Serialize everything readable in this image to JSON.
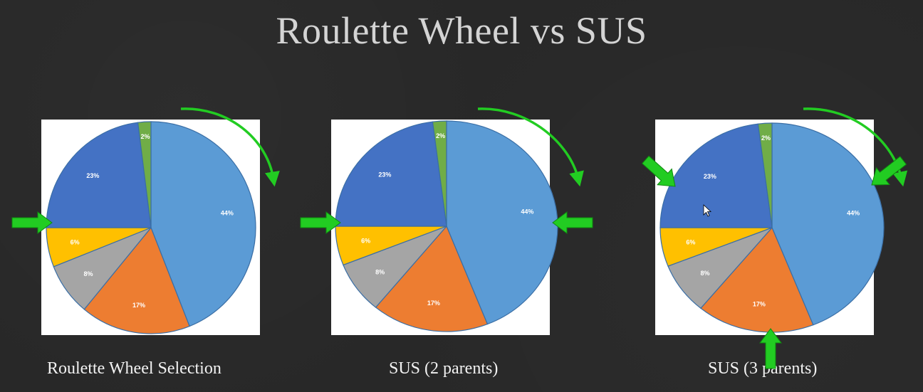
{
  "title": "Roulette Wheel vs SUS",
  "colors": {
    "background": "#282828",
    "arrow": "#22cc22",
    "slice_44": "#5b9bd5",
    "slice_17": "#ed7d31",
    "slice_8": "#a5a5a5",
    "slice_6": "#ffc000",
    "slice_23": "#4472c4",
    "slice_2": "#70ad47"
  },
  "slices": [
    {
      "label": "44%",
      "value": 44,
      "color_key": "slice_44"
    },
    {
      "label": "17%",
      "value": 17,
      "color_key": "slice_17"
    },
    {
      "label": "8%",
      "value": 8,
      "color_key": "slice_8"
    },
    {
      "label": "6%",
      "value": 6,
      "color_key": "slice_6"
    },
    {
      "label": "23%",
      "value": 23,
      "color_key": "slice_23"
    },
    {
      "label": "2%",
      "value": 2,
      "color_key": "slice_2"
    }
  ],
  "panels": [
    {
      "caption": "Roulette Wheel Selection",
      "pointer_count": 1
    },
    {
      "caption": "SUS (2 parents)",
      "pointer_count": 2
    },
    {
      "caption": "SUS (3 parents)",
      "pointer_count": 3
    }
  ],
  "cursor_icon": "mouse-pointer-icon"
}
